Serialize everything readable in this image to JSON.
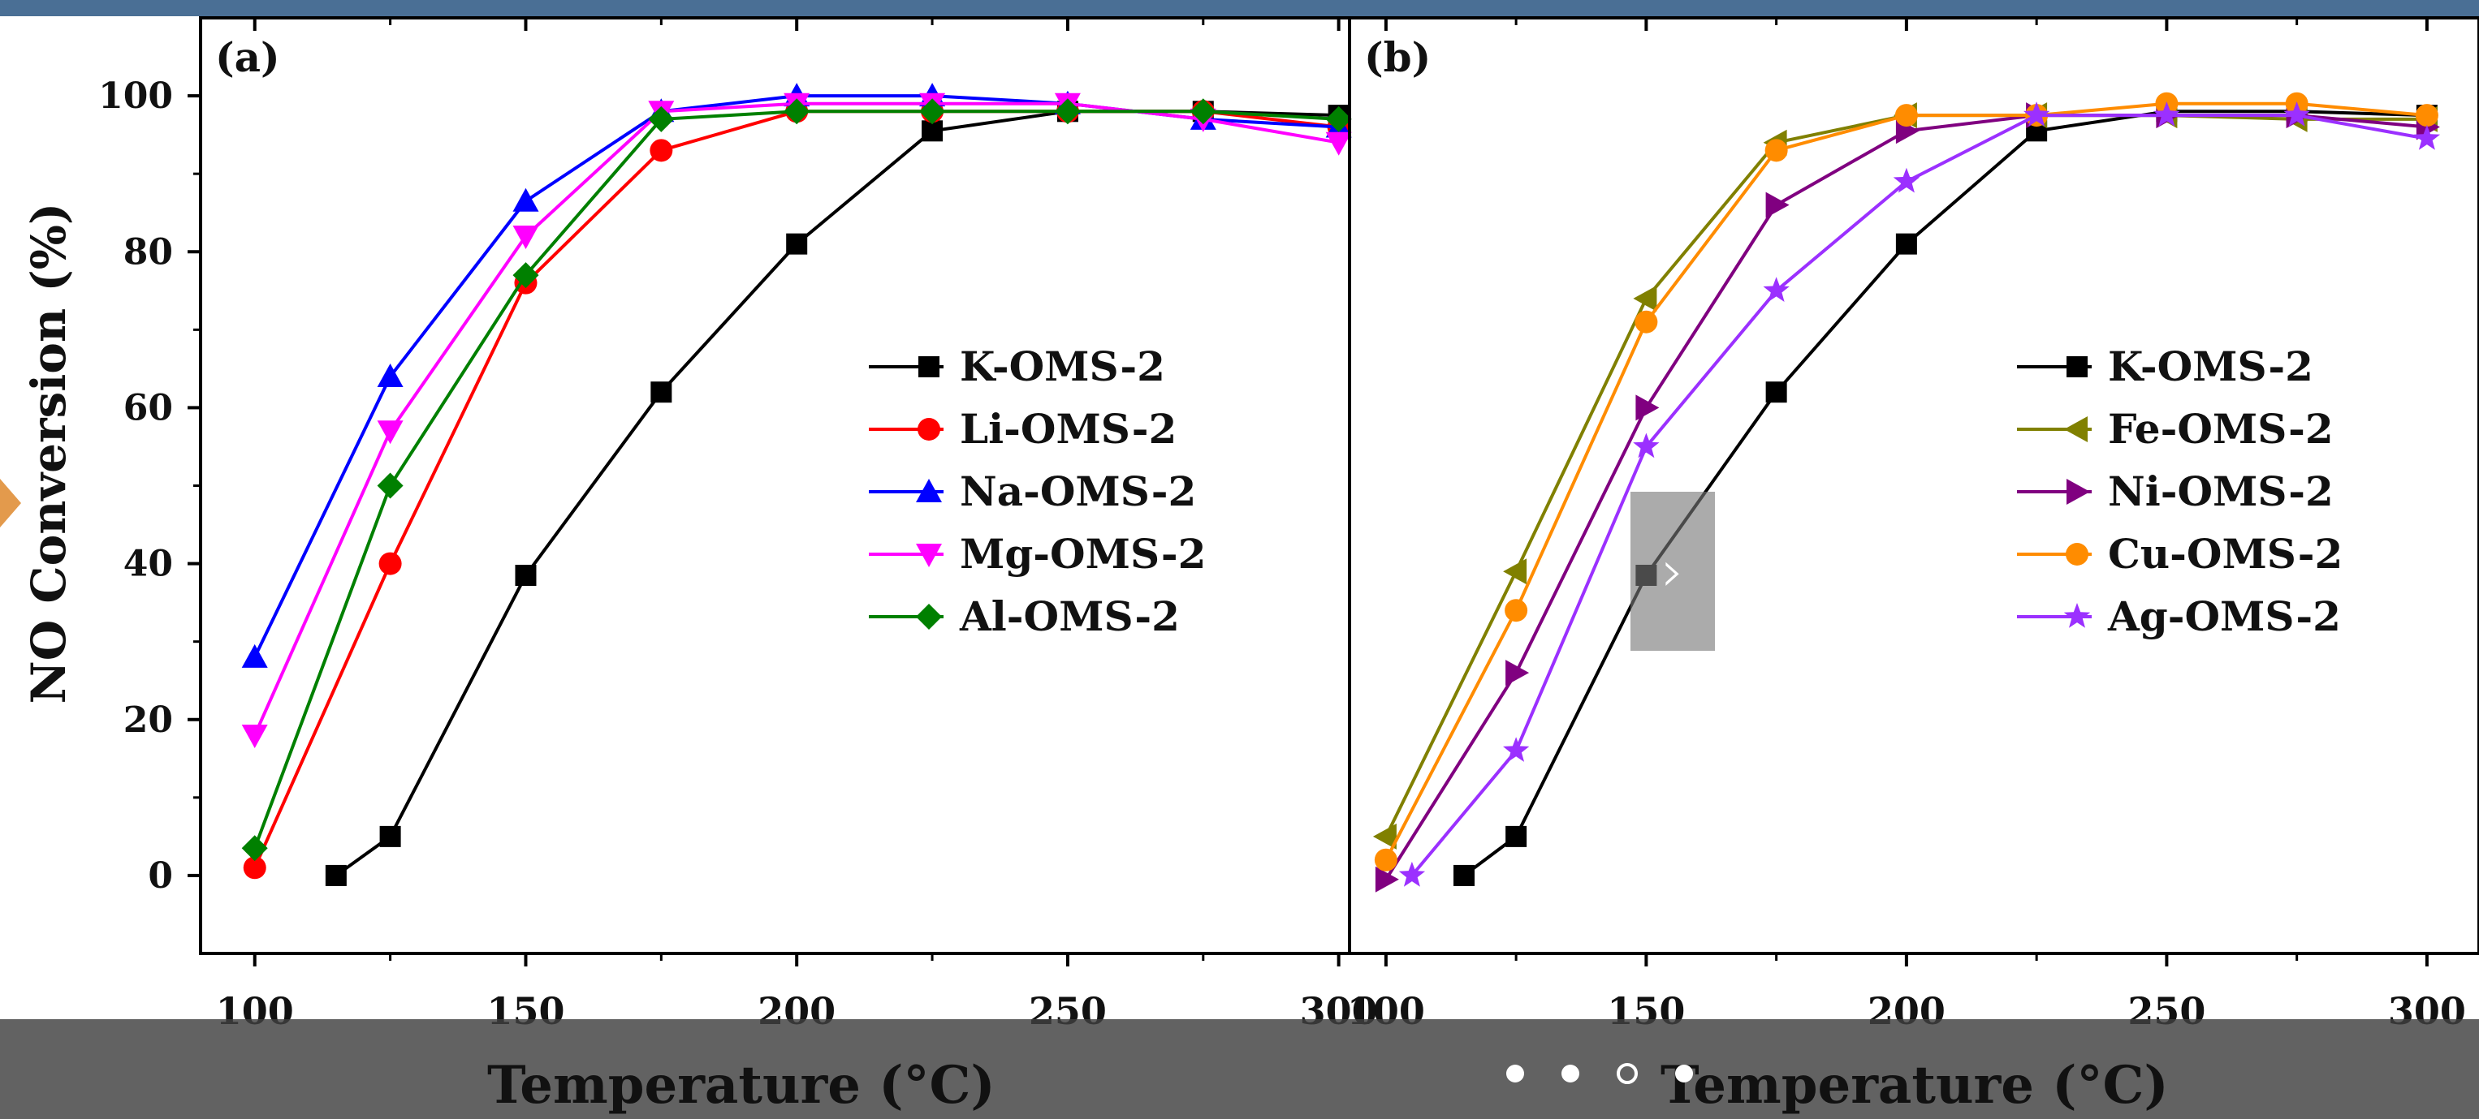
{
  "viewer": {
    "next_glyph": "›",
    "slide_count": 4,
    "active_slide": 3,
    "accent_color": "#4a6f95"
  },
  "chart_data": [
    {
      "type": "line",
      "panel_label": "(a)",
      "xlabel": "Temperature (°C)",
      "ylabel": "NO Conversion (%)",
      "xlim": [
        90,
        302
      ],
      "ylim": [
        -10,
        110
      ],
      "xticks": [
        100,
        150,
        200,
        250,
        300
      ],
      "yticks": [
        0,
        20,
        40,
        60,
        80,
        100
      ],
      "legend_position": "center-right",
      "series": [
        {
          "name": "K-OMS-2",
          "color": "#000000",
          "marker": "square",
          "x": [
            115,
            125,
            150,
            175,
            200,
            225,
            250,
            275,
            300
          ],
          "y": [
            0,
            5,
            38.5,
            62,
            81,
            95.5,
            98,
            98,
            97.5
          ]
        },
        {
          "name": "Li-OMS-2",
          "color": "#ff0000",
          "marker": "circle",
          "x": [
            100,
            125,
            150,
            175,
            200,
            225,
            250,
            275,
            300
          ],
          "y": [
            1,
            40,
            76,
            93,
            98,
            98,
            98,
            98,
            96
          ]
        },
        {
          "name": "Na-OMS-2",
          "color": "#0000ff",
          "marker": "triangle-up",
          "x": [
            100,
            125,
            150,
            175,
            200,
            225,
            250,
            275,
            300
          ],
          "y": [
            28,
            64,
            86.5,
            98,
            100,
            100,
            99,
            97,
            96
          ]
        },
        {
          "name": "Mg-OMS-2",
          "color": "#ff00ff",
          "marker": "triangle-down",
          "x": [
            100,
            125,
            150,
            175,
            200,
            225,
            250,
            275,
            300
          ],
          "y": [
            18,
            57,
            82,
            98,
            99,
            99,
            99,
            97,
            94
          ]
        },
        {
          "name": "Al-OMS-2",
          "color": "#008000",
          "marker": "diamond",
          "x": [
            100,
            125,
            150,
            175,
            200,
            225,
            250,
            275,
            300
          ],
          "y": [
            3.5,
            50,
            77,
            97,
            98,
            98,
            98,
            98,
            97
          ]
        }
      ]
    },
    {
      "type": "line",
      "panel_label": "(b)",
      "xlabel": "Temperature (°C)",
      "ylabel": "",
      "xlim": [
        93,
        310
      ],
      "ylim": [
        -10,
        110
      ],
      "xticks": [
        100,
        150,
        200,
        250,
        300
      ],
      "yticks": [],
      "legend_position": "center-right",
      "series": [
        {
          "name": "K-OMS-2",
          "color": "#000000",
          "marker": "square",
          "x": [
            115,
            125,
            150,
            175,
            200,
            225,
            250,
            275,
            300
          ],
          "y": [
            0,
            5,
            38.5,
            62,
            81,
            95.5,
            98,
            98,
            97.5
          ]
        },
        {
          "name": "Fe-OMS-2",
          "color": "#808000",
          "marker": "triangle-left",
          "x": [
            100,
            125,
            150,
            175,
            200,
            225,
            250,
            275,
            300
          ],
          "y": [
            5,
            39,
            74,
            94,
            97.5,
            97.5,
            97.5,
            97,
            97
          ]
        },
        {
          "name": "Ni-OMS-2",
          "color": "#800080",
          "marker": "triangle-right",
          "x": [
            100,
            125,
            150,
            175,
            200,
            225,
            250,
            275,
            300
          ],
          "y": [
            -0.5,
            26,
            60,
            86,
            95.5,
            97.5,
            97.5,
            97.5,
            96
          ]
        },
        {
          "name": "Cu-OMS-2",
          "color": "#ff8c00",
          "marker": "circle",
          "x": [
            100,
            125,
            150,
            175,
            200,
            225,
            250,
            275,
            300
          ],
          "y": [
            2,
            34,
            71,
            93,
            97.5,
            97.5,
            99,
            99,
            97.5
          ]
        },
        {
          "name": "Ag-OMS-2",
          "color": "#9b30ff",
          "marker": "star",
          "x": [
            105,
            125,
            150,
            175,
            200,
            225,
            250,
            275,
            300
          ],
          "y": [
            0,
            16,
            55,
            75,
            89,
            97.5,
            97.5,
            97.5,
            94.5
          ]
        }
      ]
    }
  ]
}
